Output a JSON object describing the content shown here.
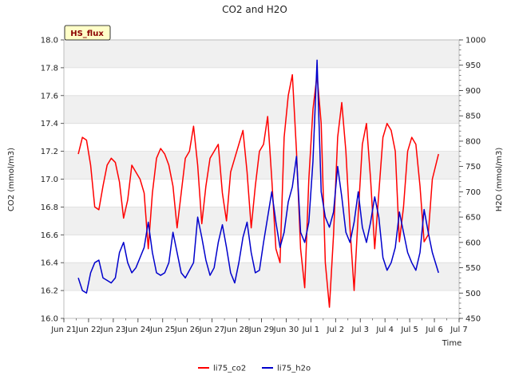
{
  "chart_data": {
    "type": "line",
    "title": "CO2 and H2O",
    "badge": "HS_flux",
    "xlabel": "Time",
    "ylabel_left": "CO2 (mmol/m3)",
    "ylabel_right": "H2O (mmol/m3)",
    "xlim": [
      "Jun 21",
      "Jul 7"
    ],
    "ylim_left": [
      16.0,
      18.0
    ],
    "ylim_right": [
      450,
      1000
    ],
    "x_ticks": [
      "Jun 22",
      "Jun 23",
      "Jun 24",
      "Jun 25",
      "Jun 26",
      "Jun 27",
      "Jun 28",
      "Jun 29",
      "Jun 30",
      "Jul 1",
      "Jul 2",
      "Jul 3",
      "Jul 4",
      "Jul 5",
      "Jul 6",
      "Jul 7"
    ],
    "x_tick_labels": [
      "Jun 22",
      "Jun 23",
      "Jun 24",
      "Jun 25",
      "Jun 26",
      "Jun 27",
      "Jun 28",
      "Jun 29",
      "Jun 30",
      "Jul 1",
      "Jul 2",
      "Jul 3",
      "Jul 4",
      "Jul 5",
      "Jul 6",
      "Jul 7"
    ],
    "x_first_label": "Jun 21",
    "y_ticks_left": [
      "16.0",
      "16.2",
      "16.4",
      "16.6",
      "16.8",
      "17.0",
      "17.2",
      "17.4",
      "17.6",
      "17.8",
      "18.0"
    ],
    "y_ticks_right": [
      "450",
      "500",
      "550",
      "600",
      "650",
      "700",
      "750",
      "800",
      "850",
      "900",
      "950",
      "1000"
    ],
    "grid": "horizontal bands",
    "legend_position": "bottom-center",
    "series": [
      {
        "name": "li75_co2",
        "axis": "left",
        "color": "#ff0000",
        "points": [
          [
            "Jun 21 14:00",
            17.18
          ],
          [
            "Jun 21 18:00",
            17.3
          ],
          [
            "Jun 21 22:00",
            17.28
          ],
          [
            "Jun 22 02:00",
            17.1
          ],
          [
            "Jun 22 06:00",
            16.8
          ],
          [
            "Jun 22 10:00",
            16.78
          ],
          [
            "Jun 22 14:00",
            16.95
          ],
          [
            "Jun 22 18:00",
            17.1
          ],
          [
            "Jun 22 22:00",
            17.15
          ],
          [
            "Jun 23 02:00",
            17.12
          ],
          [
            "Jun 23 06:00",
            16.98
          ],
          [
            "Jun 23 10:00",
            16.72
          ],
          [
            "Jun 23 14:00",
            16.85
          ],
          [
            "Jun 23 18:00",
            17.1
          ],
          [
            "Jun 23 22:00",
            17.05
          ],
          [
            "Jun 24 02:00",
            17.0
          ],
          [
            "Jun 24 06:00",
            16.9
          ],
          [
            "Jun 24 10:00",
            16.5
          ],
          [
            "Jun 24 14:00",
            16.9
          ],
          [
            "Jun 24 18:00",
            17.15
          ],
          [
            "Jun 24 22:00",
            17.22
          ],
          [
            "Jun 25 02:00",
            17.18
          ],
          [
            "Jun 25 06:00",
            17.1
          ],
          [
            "Jun 25 10:00",
            16.95
          ],
          [
            "Jun 25 14:00",
            16.65
          ],
          [
            "Jun 25 18:00",
            16.9
          ],
          [
            "Jun 25 22:00",
            17.15
          ],
          [
            "Jun 26 02:00",
            17.2
          ],
          [
            "Jun 26 06:00",
            17.38
          ],
          [
            "Jun 26 10:00",
            17.1
          ],
          [
            "Jun 26 14:00",
            16.68
          ],
          [
            "Jun 26 18:00",
            16.95
          ],
          [
            "Jun 26 22:00",
            17.15
          ],
          [
            "Jun 27 02:00",
            17.2
          ],
          [
            "Jun 27 06:00",
            17.25
          ],
          [
            "Jun 27 10:00",
            16.9
          ],
          [
            "Jun 27 14:00",
            16.7
          ],
          [
            "Jun 27 18:00",
            17.05
          ],
          [
            "Jun 27 22:00",
            17.15
          ],
          [
            "Jun 28 02:00",
            17.25
          ],
          [
            "Jun 28 06:00",
            17.35
          ],
          [
            "Jun 28 10:00",
            17.05
          ],
          [
            "Jun 28 14:00",
            16.65
          ],
          [
            "Jun 28 18:00",
            16.95
          ],
          [
            "Jun 28 22:00",
            17.2
          ],
          [
            "Jun 29 02:00",
            17.25
          ],
          [
            "Jun 29 06:00",
            17.45
          ],
          [
            "Jun 29 10:00",
            17.0
          ],
          [
            "Jun 29 14:00",
            16.5
          ],
          [
            "Jun 29 18:00",
            16.4
          ],
          [
            "Jun 29 22:00",
            17.3
          ],
          [
            "Jun 30 02:00",
            17.6
          ],
          [
            "Jun 30 06:00",
            17.75
          ],
          [
            "Jun 30 10:00",
            17.2
          ],
          [
            "Jun 30 14:00",
            16.5
          ],
          [
            "Jun 30 18:00",
            16.22
          ],
          [
            "Jun 30 22:00",
            17.0
          ],
          [
            "Jul 1 02:00",
            17.5
          ],
          [
            "Jul 1 06:00",
            17.75
          ],
          [
            "Jul 1 10:00",
            17.4
          ],
          [
            "Jul 1 14:00",
            16.4
          ],
          [
            "Jul 1 18:00",
            16.08
          ],
          [
            "Jul 1 22:00",
            16.6
          ],
          [
            "Jul 2 02:00",
            17.3
          ],
          [
            "Jul 2 06:00",
            17.55
          ],
          [
            "Jul 2 10:00",
            17.2
          ],
          [
            "Jul 2 14:00",
            16.65
          ],
          [
            "Jul 2 18:00",
            16.2
          ],
          [
            "Jul 2 22:00",
            16.75
          ],
          [
            "Jul 3 02:00",
            17.25
          ],
          [
            "Jul 3 06:00",
            17.4
          ],
          [
            "Jul 3 10:00",
            17.0
          ],
          [
            "Jul 3 14:00",
            16.5
          ],
          [
            "Jul 3 18:00",
            16.9
          ],
          [
            "Jul 3 22:00",
            17.3
          ],
          [
            "Jul 4 02:00",
            17.4
          ],
          [
            "Jul 4 06:00",
            17.35
          ],
          [
            "Jul 4 10:00",
            17.2
          ],
          [
            "Jul 4 14:00",
            16.55
          ],
          [
            "Jul 4 18:00",
            16.8
          ],
          [
            "Jul 4 22:00",
            17.2
          ],
          [
            "Jul 5 02:00",
            17.3
          ],
          [
            "Jul 5 06:00",
            17.25
          ],
          [
            "Jul 5 10:00",
            16.95
          ],
          [
            "Jul 5 14:00",
            16.55
          ],
          [
            "Jul 5 18:00",
            16.6
          ],
          [
            "Jul 5 22:00",
            17.0
          ],
          [
            "Jul 6 04:00",
            17.18
          ]
        ]
      },
      {
        "name": "li75_h2o",
        "axis": "right",
        "color": "#0000cc",
        "points": [
          [
            "Jun 21 14:00",
            530
          ],
          [
            "Jun 21 18:00",
            505
          ],
          [
            "Jun 21 22:00",
            500
          ],
          [
            "Jun 22 02:00",
            540
          ],
          [
            "Jun 22 06:00",
            560
          ],
          [
            "Jun 22 10:00",
            565
          ],
          [
            "Jun 22 14:00",
            530
          ],
          [
            "Jun 22 18:00",
            525
          ],
          [
            "Jun 22 22:00",
            520
          ],
          [
            "Jun 23 02:00",
            530
          ],
          [
            "Jun 23 06:00",
            580
          ],
          [
            "Jun 23 10:00",
            600
          ],
          [
            "Jun 23 14:00",
            560
          ],
          [
            "Jun 23 18:00",
            540
          ],
          [
            "Jun 23 22:00",
            550
          ],
          [
            "Jun 24 02:00",
            570
          ],
          [
            "Jun 24 06:00",
            590
          ],
          [
            "Jun 24 10:00",
            640
          ],
          [
            "Jun 24 14:00",
            580
          ],
          [
            "Jun 24 18:00",
            540
          ],
          [
            "Jun 24 22:00",
            535
          ],
          [
            "Jun 25 02:00",
            540
          ],
          [
            "Jun 25 06:00",
            560
          ],
          [
            "Jun 25 10:00",
            620
          ],
          [
            "Jun 25 14:00",
            580
          ],
          [
            "Jun 25 18:00",
            540
          ],
          [
            "Jun 25 22:00",
            530
          ],
          [
            "Jun 26 02:00",
            545
          ],
          [
            "Jun 26 06:00",
            560
          ],
          [
            "Jun 26 10:00",
            650
          ],
          [
            "Jun 26 14:00",
            610
          ],
          [
            "Jun 26 18:00",
            565
          ],
          [
            "Jun 26 22:00",
            535
          ],
          [
            "Jun 27 02:00",
            550
          ],
          [
            "Jun 27 06:00",
            600
          ],
          [
            "Jun 27 10:00",
            635
          ],
          [
            "Jun 27 14:00",
            590
          ],
          [
            "Jun 27 18:00",
            540
          ],
          [
            "Jun 27 22:00",
            520
          ],
          [
            "Jun 28 02:00",
            560
          ],
          [
            "Jun 28 06:00",
            610
          ],
          [
            "Jun 28 10:00",
            640
          ],
          [
            "Jun 28 14:00",
            580
          ],
          [
            "Jun 28 18:00",
            540
          ],
          [
            "Jun 28 22:00",
            545
          ],
          [
            "Jun 29 02:00",
            600
          ],
          [
            "Jun 29 06:00",
            650
          ],
          [
            "Jun 29 10:00",
            700
          ],
          [
            "Jun 29 14:00",
            640
          ],
          [
            "Jun 29 18:00",
            590
          ],
          [
            "Jun 29 22:00",
            620
          ],
          [
            "Jun 30 02:00",
            680
          ],
          [
            "Jun 30 06:00",
            710
          ],
          [
            "Jun 30 10:00",
            770
          ],
          [
            "Jun 30 14:00",
            620
          ],
          [
            "Jun 30 18:00",
            600
          ],
          [
            "Jun 30 22:00",
            640
          ],
          [
            "Jul 1 02:00",
            760
          ],
          [
            "Jul 1 06:00",
            960
          ],
          [
            "Jul 1 10:00",
            700
          ],
          [
            "Jul 1 14:00",
            650
          ],
          [
            "Jul 1 18:00",
            630
          ],
          [
            "Jul 1 22:00",
            660
          ],
          [
            "Jul 2 02:00",
            750
          ],
          [
            "Jul 2 06:00",
            690
          ],
          [
            "Jul 2 10:00",
            620
          ],
          [
            "Jul 2 14:00",
            600
          ],
          [
            "Jul 2 18:00",
            640
          ],
          [
            "Jul 2 22:00",
            700
          ],
          [
            "Jul 3 02:00",
            630
          ],
          [
            "Jul 3 06:00",
            600
          ],
          [
            "Jul 3 10:00",
            640
          ],
          [
            "Jul 3 14:00",
            690
          ],
          [
            "Jul 3 18:00",
            650
          ],
          [
            "Jul 3 22:00",
            570
          ],
          [
            "Jul 4 02:00",
            545
          ],
          [
            "Jul 4 06:00",
            560
          ],
          [
            "Jul 4 10:00",
            590
          ],
          [
            "Jul 4 14:00",
            660
          ],
          [
            "Jul 4 18:00",
            620
          ],
          [
            "Jul 4 22:00",
            580
          ],
          [
            "Jul 5 02:00",
            560
          ],
          [
            "Jul 5 06:00",
            545
          ],
          [
            "Jul 5 10:00",
            580
          ],
          [
            "Jul 5 14:00",
            665
          ],
          [
            "Jul 5 18:00",
            620
          ],
          [
            "Jul 5 22:00",
            580
          ],
          [
            "Jul 6 04:00",
            540
          ]
        ]
      }
    ]
  }
}
